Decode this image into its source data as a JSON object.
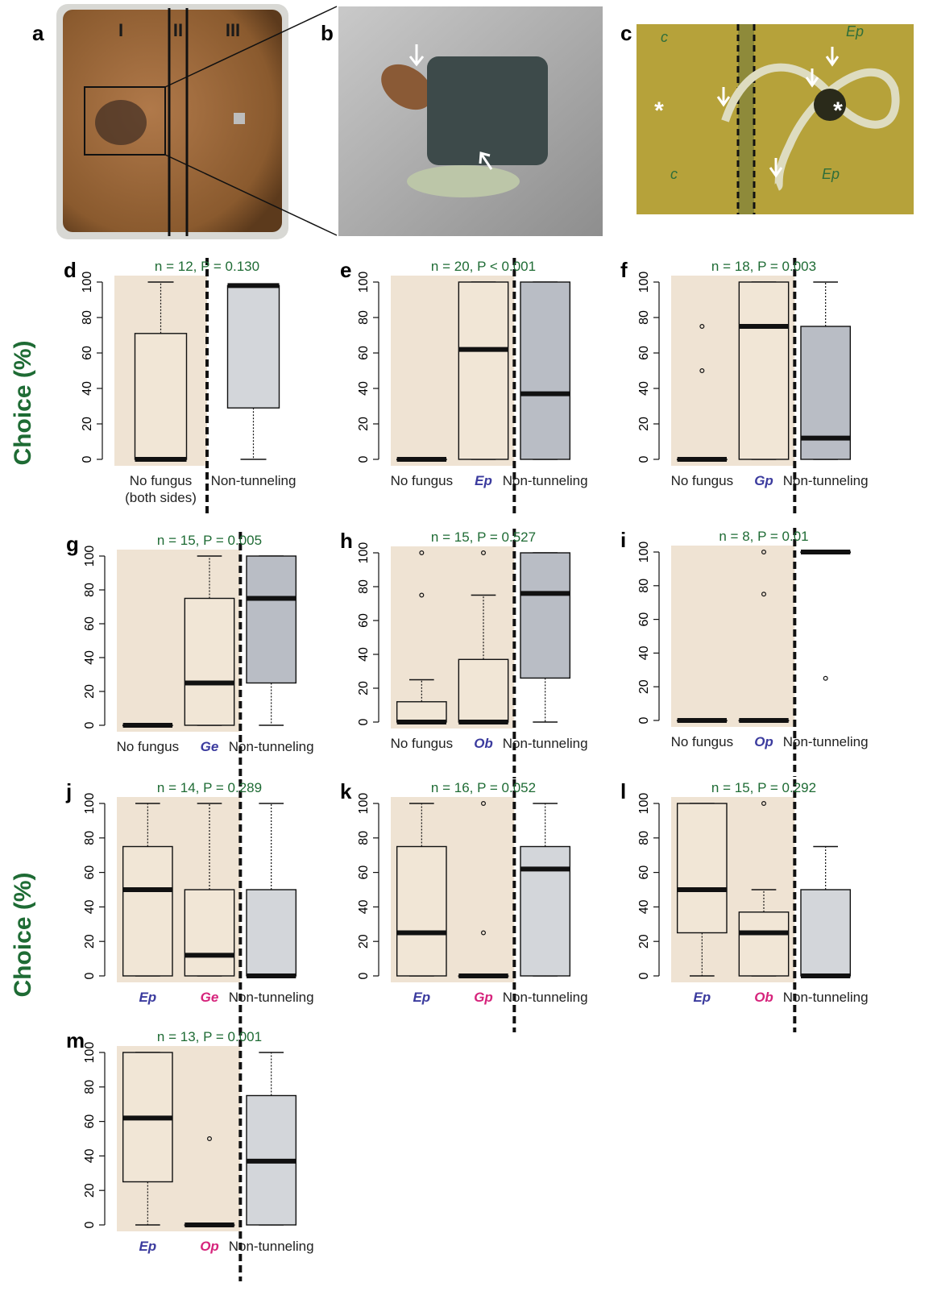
{
  "photo_panels": {
    "labels": [
      "a",
      "b",
      "c"
    ],
    "plate_zones": [
      "I",
      "II",
      "III"
    ],
    "marker_texts": [
      "c",
      "c",
      "Ep",
      "Ep"
    ]
  },
  "axis_titles": [
    "Choice (%)",
    "Choice (%)"
  ],
  "chart_data": [
    {
      "type": "box",
      "panel": "d",
      "annotation": "n = 12, P = 0.130",
      "categories": [
        "No fungus\n(both sides)",
        "Non-tunneling"
      ],
      "category_colors": [
        "#222222",
        "#222222"
      ],
      "box_colors": [
        "#f1e6d6",
        "#d3d6da"
      ],
      "shade_color": "#efe3d3",
      "boxes": [
        {
          "min": 0,
          "q1": 0,
          "median": 0,
          "q3": 71,
          "max": 100,
          "outliers": []
        },
        {
          "min": 0,
          "q1": 29,
          "median": 98,
          "q3": 98,
          "max": 98,
          "outliers": []
        }
      ],
      "ylim": [
        0,
        100
      ],
      "yticks": [
        0,
        20,
        40,
        60,
        80,
        100
      ]
    },
    {
      "type": "box",
      "panel": "e",
      "annotation": "n = 20, P < 0.001",
      "categories": [
        "No fungus",
        "Ep",
        "Non-tunneling"
      ],
      "category_colors": [
        "#222222",
        "#3b3b9e",
        "#222222"
      ],
      "box_colors": [
        "#f1e6d6",
        "#f1e6d6",
        "#b9bdc5"
      ],
      "shade_color": "#efe3d3",
      "boxes": [
        {
          "min": 0,
          "q1": 0,
          "median": 0,
          "q3": 0,
          "max": 0,
          "outliers": []
        },
        {
          "min": 0,
          "q1": 0,
          "median": 62,
          "q3": 100,
          "max": 100,
          "outliers": []
        },
        {
          "min": 0,
          "q1": 0,
          "median": 37,
          "q3": 100,
          "max": 100,
          "outliers": []
        }
      ],
      "ylim": [
        0,
        100
      ],
      "yticks": [
        0,
        20,
        40,
        60,
        80,
        100
      ]
    },
    {
      "type": "box",
      "panel": "f",
      "annotation": "n = 18, P = 0.003",
      "categories": [
        "No fungus",
        "Gp",
        "Non-tunneling"
      ],
      "category_colors": [
        "#222222",
        "#3b3b9e",
        "#222222"
      ],
      "box_colors": [
        "#f1e6d6",
        "#f1e6d6",
        "#b9bdc5"
      ],
      "shade_color": "#efe3d3",
      "boxes": [
        {
          "min": 0,
          "q1": 0,
          "median": 0,
          "q3": 0,
          "max": 0,
          "outliers": [
            75,
            50
          ]
        },
        {
          "min": 0,
          "q1": 0,
          "median": 75,
          "q3": 100,
          "max": 100,
          "outliers": []
        },
        {
          "min": 0,
          "q1": 0,
          "median": 12,
          "q3": 75,
          "max": 100,
          "outliers": []
        }
      ],
      "ylim": [
        0,
        100
      ],
      "yticks": [
        0,
        20,
        40,
        60,
        80,
        100
      ]
    },
    {
      "type": "box",
      "panel": "g",
      "annotation": "n = 15, P = 0.005",
      "categories": [
        "No fungus",
        "Ge",
        "Non-tunneling"
      ],
      "category_colors": [
        "#222222",
        "#3b3b9e",
        "#222222"
      ],
      "box_colors": [
        "#f1e6d6",
        "#f1e6d6",
        "#b9bdc5"
      ],
      "shade_color": "#efe3d3",
      "boxes": [
        {
          "min": 0,
          "q1": 0,
          "median": 0,
          "q3": 0,
          "max": 0,
          "outliers": []
        },
        {
          "min": 0,
          "q1": 0,
          "median": 25,
          "q3": 75,
          "max": 100,
          "outliers": []
        },
        {
          "min": 0,
          "q1": 25,
          "median": 75,
          "q3": 100,
          "max": 100,
          "outliers": []
        }
      ],
      "ylim": [
        0,
        100
      ],
      "yticks": [
        0,
        20,
        40,
        60,
        80,
        100
      ]
    },
    {
      "type": "box",
      "panel": "h",
      "annotation": "n = 15, P = 0.527",
      "categories": [
        "No fungus",
        "Ob",
        "Non-tunneling"
      ],
      "category_colors": [
        "#222222",
        "#3b3b9e",
        "#222222"
      ],
      "box_colors": [
        "#f1e6d6",
        "#f1e6d6",
        "#b9bdc5"
      ],
      "shade_color": "#efe3d3",
      "boxes": [
        {
          "min": 0,
          "q1": 0,
          "median": 0,
          "q3": 12,
          "max": 25,
          "outliers": [
            100,
            75
          ]
        },
        {
          "min": 0,
          "q1": 0,
          "median": 0,
          "q3": 37,
          "max": 75,
          "outliers": [
            100
          ]
        },
        {
          "min": 0,
          "q1": 26,
          "median": 76,
          "q3": 100,
          "max": 100,
          "outliers": []
        }
      ],
      "ylim": [
        0,
        100
      ],
      "yticks": [
        0,
        20,
        40,
        60,
        80,
        100
      ]
    },
    {
      "type": "box",
      "panel": "i",
      "annotation": "n = 8, P = 0.01",
      "categories": [
        "No fungus",
        "Op",
        "Non-tunneling"
      ],
      "category_colors": [
        "#222222",
        "#3b3b9e",
        "#222222"
      ],
      "box_colors": [
        "#f1e6d6",
        "#f1e6d6",
        "#b9bdc5"
      ],
      "shade_color": "#efe3d3",
      "boxes": [
        {
          "min": 0,
          "q1": 0,
          "median": 0,
          "q3": 0,
          "max": 0,
          "outliers": []
        },
        {
          "min": 0,
          "q1": 0,
          "median": 0,
          "q3": 0,
          "max": 0,
          "outliers": [
            100,
            75
          ]
        },
        {
          "min": 100,
          "q1": 100,
          "median": 100,
          "q3": 100,
          "max": 100,
          "outliers": [
            25
          ]
        }
      ],
      "ylim": [
        0,
        100
      ],
      "yticks": [
        0,
        20,
        40,
        60,
        80,
        100
      ]
    },
    {
      "type": "box",
      "panel": "j",
      "annotation": "n = 14, P = 0.289",
      "categories": [
        "Ep",
        "Ge",
        "Non-tunneling"
      ],
      "category_colors": [
        "#3b3b9e",
        "#d6247c",
        "#222222"
      ],
      "box_colors": [
        "#f1e6d6",
        "#f1e6d6",
        "#d3d6da"
      ],
      "shade_color": "#efe3d3",
      "boxes": [
        {
          "min": 0,
          "q1": 0,
          "median": 50,
          "q3": 75,
          "max": 100,
          "outliers": []
        },
        {
          "min": 0,
          "q1": 0,
          "median": 12,
          "q3": 50,
          "max": 100,
          "outliers": []
        },
        {
          "min": 0,
          "q1": 0,
          "median": 0,
          "q3": 50,
          "max": 100,
          "outliers": []
        }
      ],
      "ylim": [
        0,
        100
      ],
      "yticks": [
        0,
        20,
        40,
        60,
        80,
        100
      ]
    },
    {
      "type": "box",
      "panel": "k",
      "annotation": "n = 16, P = 0.052",
      "categories": [
        "Ep",
        "Gp",
        "Non-tunneling"
      ],
      "category_colors": [
        "#3b3b9e",
        "#d6247c",
        "#222222"
      ],
      "box_colors": [
        "#f1e6d6",
        "#f1e6d6",
        "#d3d6da"
      ],
      "shade_color": "#efe3d3",
      "boxes": [
        {
          "min": 0,
          "q1": 0,
          "median": 25,
          "q3": 75,
          "max": 100,
          "outliers": []
        },
        {
          "min": 0,
          "q1": 0,
          "median": 0,
          "q3": 0,
          "max": 0,
          "outliers": [
            100,
            25
          ]
        },
        {
          "min": 0,
          "q1": 0,
          "median": 62,
          "q3": 75,
          "max": 100,
          "outliers": []
        }
      ],
      "ylim": [
        0,
        100
      ],
      "yticks": [
        0,
        20,
        40,
        60,
        80,
        100
      ]
    },
    {
      "type": "box",
      "panel": "l",
      "annotation": "n = 15, P = 0.292",
      "categories": [
        "Ep",
        "Ob",
        "Non-tunneling"
      ],
      "category_colors": [
        "#3b3b9e",
        "#d6247c",
        "#222222"
      ],
      "box_colors": [
        "#f1e6d6",
        "#f1e6d6",
        "#d3d6da"
      ],
      "shade_color": "#efe3d3",
      "boxes": [
        {
          "min": 0,
          "q1": 25,
          "median": 50,
          "q3": 100,
          "max": 100,
          "outliers": []
        },
        {
          "min": 0,
          "q1": 0,
          "median": 25,
          "q3": 37,
          "max": 50,
          "outliers": [
            100
          ]
        },
        {
          "min": 0,
          "q1": 0,
          "median": 0,
          "q3": 50,
          "max": 75,
          "outliers": []
        }
      ],
      "ylim": [
        0,
        100
      ],
      "yticks": [
        0,
        20,
        40,
        60,
        80,
        100
      ]
    },
    {
      "type": "box",
      "panel": "m",
      "annotation": "n = 13, P = 0.001",
      "categories": [
        "Ep",
        "Op",
        "Non-tunneling"
      ],
      "category_colors": [
        "#3b3b9e",
        "#d6247c",
        "#222222"
      ],
      "box_colors": [
        "#f1e6d6",
        "#f1e6d6",
        "#d3d6da"
      ],
      "shade_color": "#efe3d3",
      "boxes": [
        {
          "min": 0,
          "q1": 25,
          "median": 62,
          "q3": 100,
          "max": 100,
          "outliers": []
        },
        {
          "min": 0,
          "q1": 0,
          "median": 0,
          "q3": 0,
          "max": 0,
          "outliers": [
            50
          ]
        },
        {
          "min": 0,
          "q1": 0,
          "median": 37,
          "q3": 75,
          "max": 100,
          "outliers": []
        }
      ],
      "ylim": [
        0,
        100
      ],
      "yticks": [
        0,
        20,
        40,
        60,
        80,
        100
      ]
    }
  ]
}
